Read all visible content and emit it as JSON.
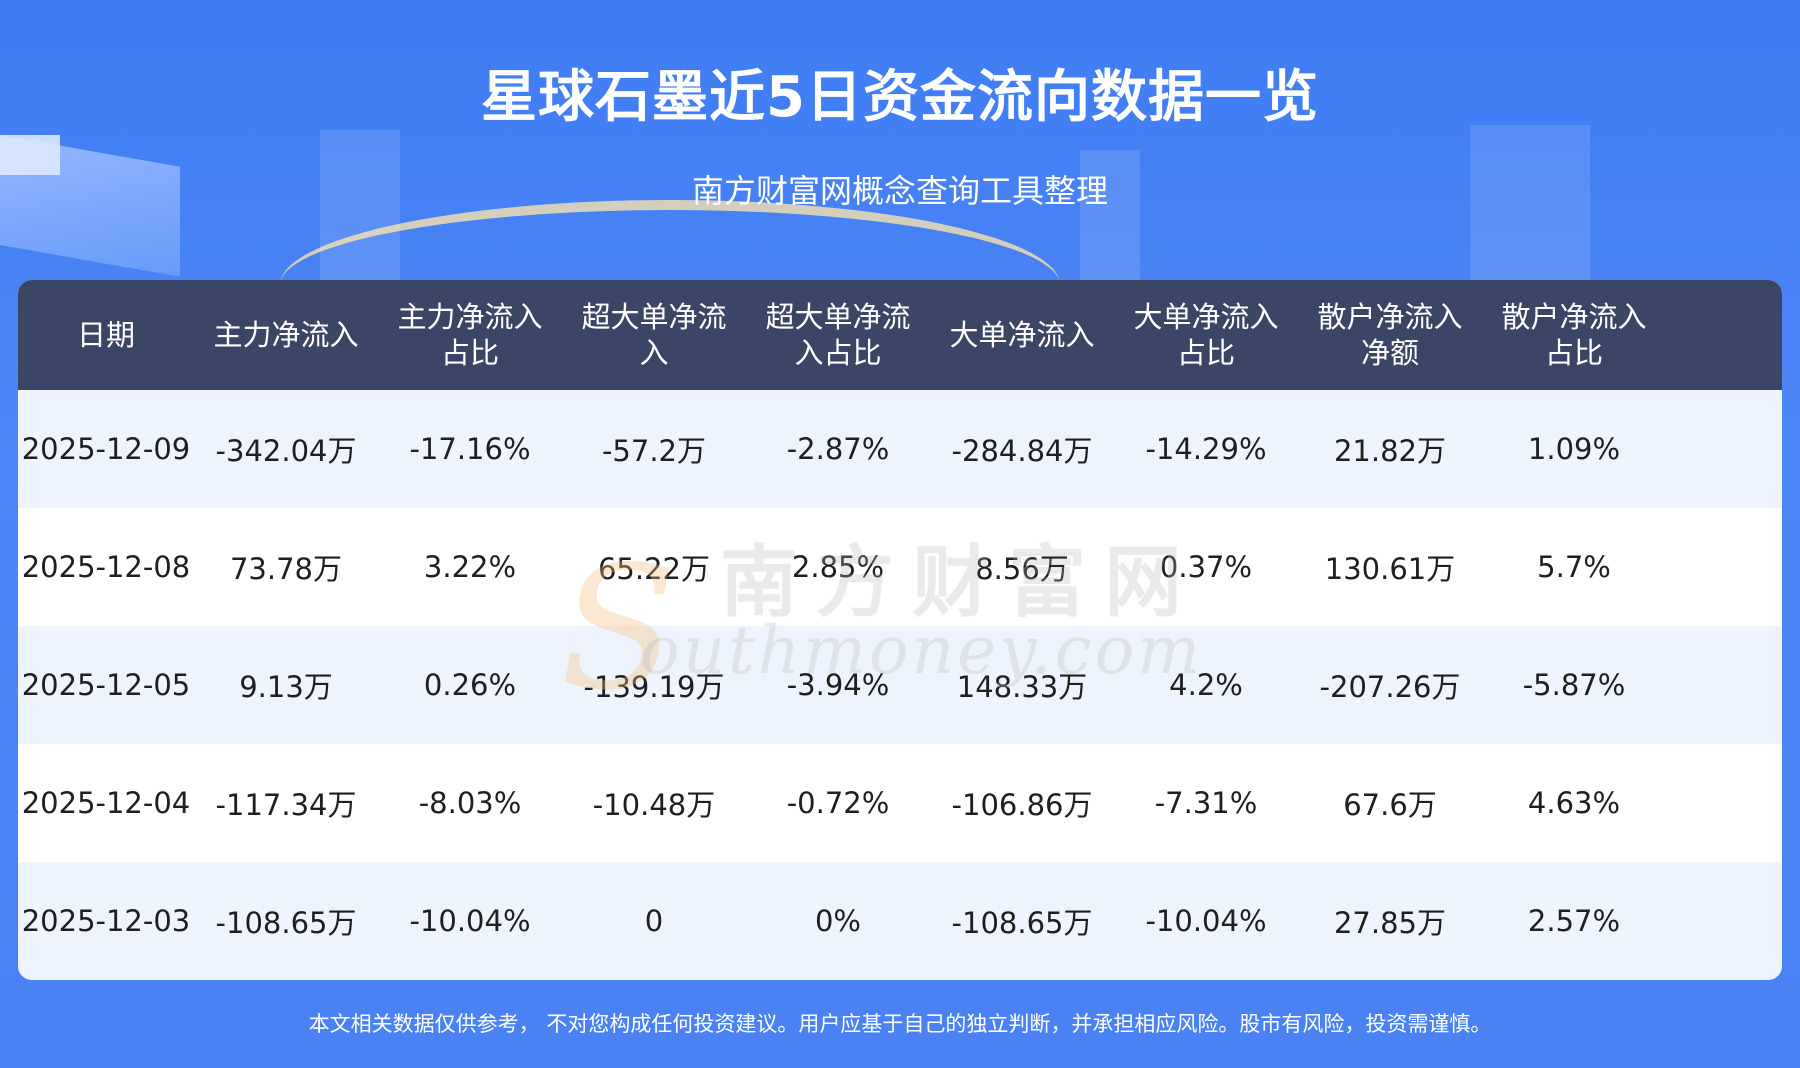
{
  "header": {
    "title": "星球石墨近5日资金流向数据一览",
    "subtitle": "南方财富网概念查询工具整理"
  },
  "table": {
    "columns": [
      "日期",
      "主力净流入",
      "主力净流入\n占比",
      "超大单净流\n入",
      "超大单净流\n入占比",
      "大单净流入",
      "大单净流入\n占比",
      "散户净流入\n净额",
      "散户净流入\n占比"
    ],
    "rows": [
      [
        "2025-12-09",
        "-342.04万",
        "-17.16%",
        "-57.2万",
        "-2.87%",
        "-284.84万",
        "-14.29%",
        "21.82万",
        "1.09%"
      ],
      [
        "2025-12-08",
        "73.78万",
        "3.22%",
        "65.22万",
        "2.85%",
        "8.56万",
        "0.37%",
        "130.61万",
        "5.7%"
      ],
      [
        "2025-12-05",
        "9.13万",
        "0.26%",
        "-139.19万",
        "-3.94%",
        "148.33万",
        "4.2%",
        "-207.26万",
        "-5.87%"
      ],
      [
        "2025-12-04",
        "-117.34万",
        "-8.03%",
        "-10.48万",
        "-0.72%",
        "-106.86万",
        "-7.31%",
        "67.6万",
        "4.63%"
      ],
      [
        "2025-12-03",
        "-108.65万",
        "-10.04%",
        "0",
        "0%",
        "-108.65万",
        "-10.04%",
        "27.85万",
        "2.57%"
      ]
    ]
  },
  "watermark": {
    "cn": "南方财富网",
    "en": "outhmoney.com",
    "s": "S"
  },
  "footer": {
    "disclaimer": "本文相关数据仅供参考， 不对您构成任何投资建议。用户应基于自己的独立判断，并承担相应风险。股市有风险，投资需谨慎。"
  }
}
